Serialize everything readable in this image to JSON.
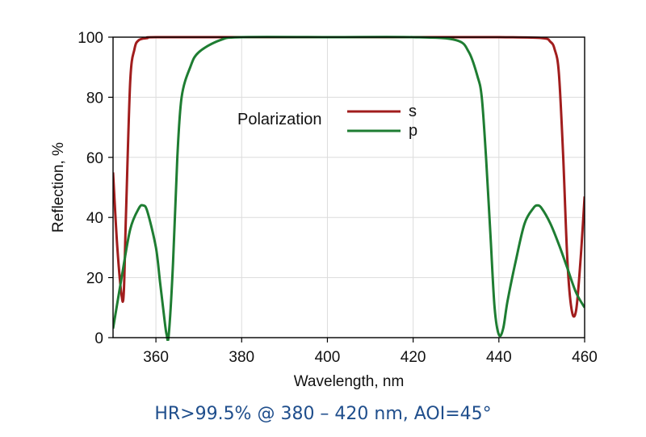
{
  "chart_data": {
    "type": "line",
    "title": "",
    "xlabel": "Wavelength, nm",
    "ylabel": "Reflection, %",
    "xlim": [
      350,
      460
    ],
    "ylim": [
      0,
      100
    ],
    "xticks": [
      "360",
      "380",
      "400",
      "420",
      "440",
      "460"
    ],
    "yticks": [
      "0",
      "20",
      "40",
      "60",
      "80",
      "100"
    ],
    "grid": true,
    "legend": {
      "title": "Polarization",
      "position": "upper-left-center"
    },
    "series": [
      {
        "name": "s",
        "color": "#a11d1d",
        "points": [
          [
            350,
            55
          ],
          [
            351,
            30
          ],
          [
            352,
            14
          ],
          [
            352.5,
            15
          ],
          [
            353,
            40
          ],
          [
            354,
            85
          ],
          [
            355,
            96
          ],
          [
            356,
            99
          ],
          [
            358,
            99.7
          ],
          [
            360,
            100
          ],
          [
            380,
            100
          ],
          [
            400,
            100
          ],
          [
            420,
            100
          ],
          [
            440,
            100
          ],
          [
            450,
            99.7
          ],
          [
            452,
            98.5
          ],
          [
            453,
            96
          ],
          [
            454,
            88
          ],
          [
            455,
            60
          ],
          [
            456,
            25
          ],
          [
            457,
            9
          ],
          [
            458,
            9
          ],
          [
            459,
            25
          ],
          [
            460,
            47
          ]
        ]
      },
      {
        "name": "p",
        "color": "#1e7d32",
        "points": [
          [
            350,
            3
          ],
          [
            352,
            20
          ],
          [
            354,
            36
          ],
          [
            356,
            43
          ],
          [
            357,
            44
          ],
          [
            358,
            42
          ],
          [
            360,
            30
          ],
          [
            361,
            18
          ],
          [
            362,
            6
          ],
          [
            362.5,
            1
          ],
          [
            363,
            1
          ],
          [
            364,
            25
          ],
          [
            365,
            60
          ],
          [
            366,
            80
          ],
          [
            368,
            90
          ],
          [
            370,
            95
          ],
          [
            375,
            99
          ],
          [
            380,
            100
          ],
          [
            400,
            100
          ],
          [
            420,
            100
          ],
          [
            430,
            99
          ],
          [
            433,
            95
          ],
          [
            435,
            87
          ],
          [
            436,
            80
          ],
          [
            437,
            60
          ],
          [
            438,
            35
          ],
          [
            439,
            10
          ],
          [
            440,
            1
          ],
          [
            441,
            3
          ],
          [
            442,
            12
          ],
          [
            444,
            26
          ],
          [
            446,
            38
          ],
          [
            448,
            43
          ],
          [
            449,
            44
          ],
          [
            450,
            43
          ],
          [
            452,
            38
          ],
          [
            454,
            31
          ],
          [
            456,
            23
          ],
          [
            458,
            15
          ],
          [
            460,
            10
          ]
        ]
      }
    ]
  },
  "caption": "HR>99.5% @ 380 – 420 nm, AOI=45°"
}
